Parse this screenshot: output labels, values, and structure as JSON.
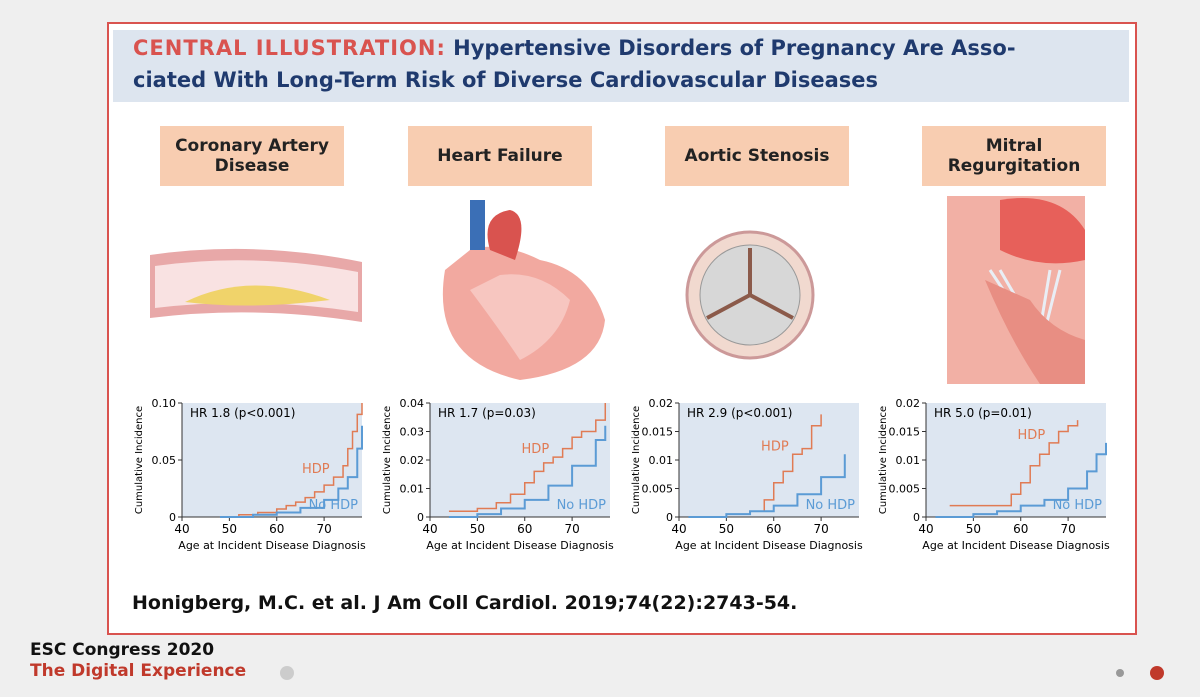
{
  "header": {
    "label": "CENTRAL ILLUSTRATION:",
    "title_lines": [
      "Hypertensive Disorders of Pregnancy Are Asso-",
      "ciated With Long-Term Risk of Diverse Cardiovascular Diseases"
    ]
  },
  "chart_data": [
    {
      "type": "line",
      "step": true,
      "title": "Coronary Artery Disease",
      "annotation": "HR 1.8 (p<0.001)",
      "x_label": "Age at Incident Disease Diagnosis",
      "y_label": "Cumulative Incidence",
      "xlim": [
        40,
        78
      ],
      "xticks": [
        40,
        50,
        60,
        70
      ],
      "ylim": [
        0,
        0.1
      ],
      "yticks": [
        0,
        0.05,
        {
          "value": 0.1,
          "label": "0.10"
        }
      ],
      "series": [
        {
          "name": "HDP",
          "color": "#e07b54",
          "x": [
            48,
            52,
            56,
            60,
            62,
            64,
            66,
            68,
            70,
            72,
            74,
            75,
            76,
            77,
            78
          ],
          "values": [
            0,
            0.002,
            0.004,
            0.007,
            0.01,
            0.013,
            0.017,
            0.022,
            0.028,
            0.035,
            0.045,
            0.06,
            0.075,
            0.09,
            0.1
          ]
        },
        {
          "name": "No HDP",
          "color": "#5b9bd5",
          "x": [
            48,
            55,
            60,
            65,
            70,
            73,
            75,
            77,
            78
          ],
          "values": [
            0,
            0.002,
            0.004,
            0.008,
            0.015,
            0.025,
            0.035,
            0.06,
            0.08
          ]
        }
      ]
    },
    {
      "type": "line",
      "step": true,
      "title": "Heart Failure",
      "annotation": "HR 1.7 (p=0.03)",
      "x_label": "Age at Incident Disease Diagnosis",
      "y_label": "Cumulative Incidence",
      "xlim": [
        40,
        78
      ],
      "xticks": [
        40,
        50,
        60,
        70
      ],
      "ylim": [
        0,
        0.04
      ],
      "yticks": [
        0,
        0.01,
        0.02,
        0.03,
        0.04
      ],
      "series": [
        {
          "name": "HDP",
          "color": "#e07b54",
          "x": [
            44,
            50,
            54,
            57,
            60,
            62,
            64,
            66,
            68,
            70,
            72,
            75,
            77
          ],
          "values": [
            0.002,
            0.003,
            0.005,
            0.008,
            0.012,
            0.016,
            0.019,
            0.021,
            0.024,
            0.028,
            0.03,
            0.034,
            0.04
          ]
        },
        {
          "name": "No HDP",
          "color": "#5b9bd5",
          "x": [
            44,
            50,
            55,
            60,
            65,
            70,
            75,
            77
          ],
          "values": [
            0,
            0.001,
            0.003,
            0.006,
            0.011,
            0.018,
            0.027,
            0.032
          ]
        }
      ]
    },
    {
      "type": "line",
      "step": true,
      "title": "Aortic Stenosis",
      "annotation": "HR 2.9 (p<0.001)",
      "x_label": "Age at Incident Disease Diagnosis",
      "y_label": "Cumulative Incidence",
      "xlim": [
        40,
        78
      ],
      "xticks": [
        40,
        50,
        60,
        70
      ],
      "ylim": [
        0,
        0.02
      ],
      "yticks": [
        0,
        0.005,
        0.01,
        0.015,
        0.02
      ],
      "series": [
        {
          "name": "HDP",
          "color": "#e07b54",
          "x": [
            55,
            58,
            60,
            62,
            64,
            66,
            68,
            70
          ],
          "values": [
            0.001,
            0.003,
            0.006,
            0.008,
            0.011,
            0.012,
            0.016,
            0.018
          ]
        },
        {
          "name": "No HDP",
          "color": "#5b9bd5",
          "x": [
            42,
            50,
            55,
            60,
            65,
            70,
            75
          ],
          "values": [
            0,
            0.0005,
            0.001,
            0.002,
            0.004,
            0.007,
            0.011
          ]
        }
      ]
    },
    {
      "type": "line",
      "step": true,
      "title": "Mitral Regurgitation",
      "annotation": "HR 5.0 (p=0.01)",
      "x_label": "Age at Incident Disease Diagnosis",
      "y_label": "Cumulative Incidence",
      "xlim": [
        40,
        78
      ],
      "xticks": [
        40,
        50,
        60,
        70
      ],
      "ylim": [
        0,
        0.02
      ],
      "yticks": [
        0,
        0.005,
        0.01,
        0.015,
        0.02
      ],
      "series": [
        {
          "name": "HDP",
          "color": "#e07b54",
          "x": [
            45,
            53,
            58,
            60,
            62,
            64,
            66,
            68,
            70,
            72
          ],
          "values": [
            0.002,
            0.002,
            0.004,
            0.006,
            0.009,
            0.011,
            0.013,
            0.015,
            0.016,
            0.017
          ]
        },
        {
          "name": "No HDP",
          "color": "#5b9bd5",
          "x": [
            42,
            50,
            55,
            60,
            65,
            70,
            74,
            76,
            78
          ],
          "values": [
            0,
            0.0005,
            0.001,
            0.002,
            0.003,
            0.005,
            0.008,
            0.011,
            0.013
          ]
        }
      ]
    }
  ],
  "citation": "Honigberg, M.C. et al. J Am Coll Cardiol. 2019;74(22):2743-54.",
  "footer": {
    "line1": "ESC Congress 2020",
    "line2": "The Digital Experience"
  }
}
